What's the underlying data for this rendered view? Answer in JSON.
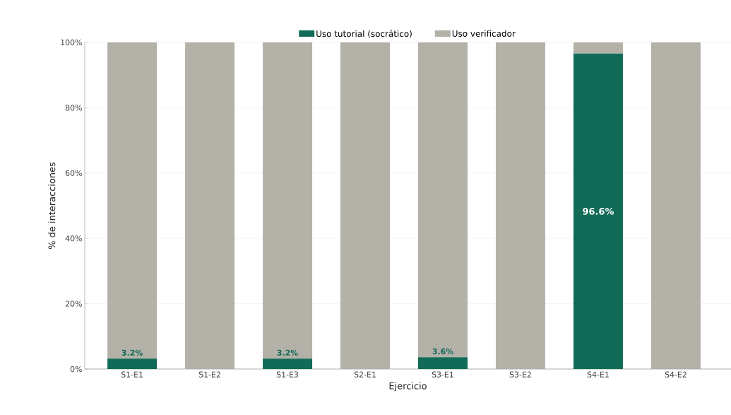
{
  "chart_data": {
    "type": "bar",
    "stacked": true,
    "xlabel": "Ejercicio",
    "ylabel": "% de interacciones",
    "categories": [
      "S1-E1",
      "S1-E2",
      "S1-E3",
      "S2-E1",
      "S3-E1",
      "S3-E2",
      "S4-E1",
      "S4-E2"
    ],
    "series": [
      {
        "name": "Uso tutorial (socrático)",
        "color": "#116b57",
        "values": [
          3.2,
          0,
          3.2,
          0,
          3.6,
          0,
          96.6,
          0
        ],
        "value_labels": [
          "3.2%",
          null,
          "3.2%",
          null,
          "3.6%",
          null,
          "96.6%",
          null
        ]
      },
      {
        "name": "Uso verificador",
        "color": "#b3b1a8",
        "values": [
          96.8,
          100,
          96.8,
          100,
          96.4,
          100,
          3.4,
          100
        ]
      }
    ],
    "ylim": [
      0,
      100
    ],
    "yticks": [
      {
        "value": 0,
        "label": "0%"
      },
      {
        "value": 20,
        "label": "20%"
      },
      {
        "value": 40,
        "label": "40%"
      },
      {
        "value": 60,
        "label": "60%"
      },
      {
        "value": 80,
        "label": "80%"
      },
      {
        "value": 100,
        "label": "100%"
      }
    ],
    "grid": "y",
    "legend": "top"
  }
}
